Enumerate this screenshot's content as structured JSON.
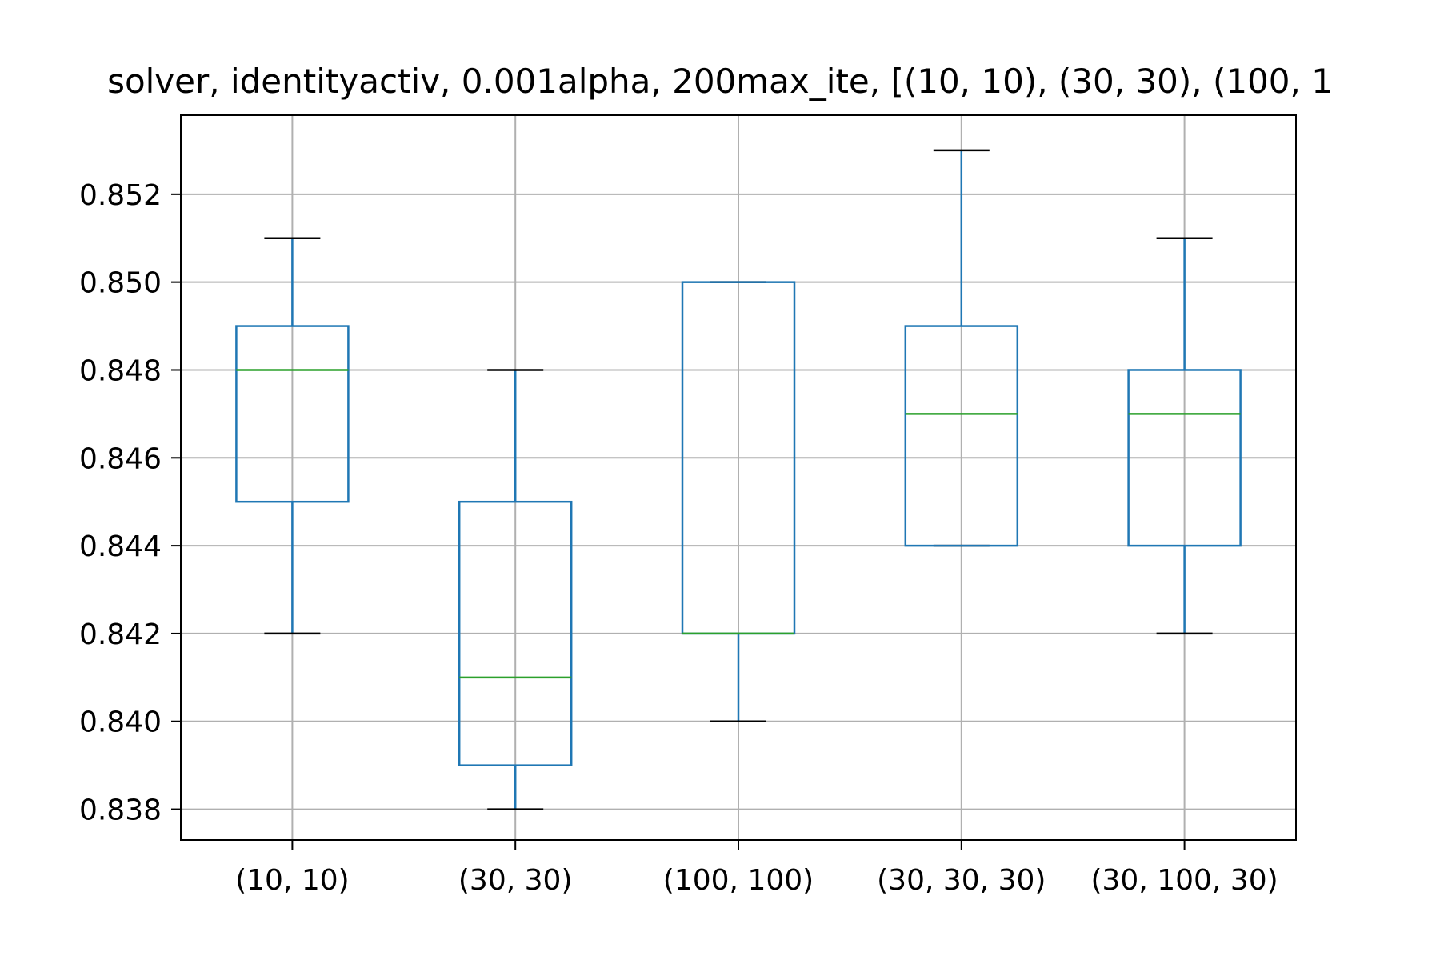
{
  "chart_data": {
    "type": "box",
    "title": "solver, identityactiv, 0.001alpha, 200max_ite, [(10, 10), (30, 30), (100, 1",
    "xlabel": "",
    "ylabel": "",
    "ylim": [
      0.8373,
      0.8538
    ],
    "yticks": [
      "0.838",
      "0.840",
      "0.842",
      "0.844",
      "0.846",
      "0.848",
      "0.850",
      "0.852"
    ],
    "grid": true,
    "categories": [
      "(10, 10)",
      "(30, 30)",
      "(100, 100)",
      "(30, 30, 30)",
      "(30, 100, 30)"
    ],
    "boxes": [
      {
        "whisker_low": 0.842,
        "q1": 0.845,
        "median": 0.848,
        "q3": 0.849,
        "whisker_high": 0.851
      },
      {
        "whisker_low": 0.838,
        "q1": 0.839,
        "median": 0.841,
        "q3": 0.845,
        "whisker_high": 0.848
      },
      {
        "whisker_low": 0.84,
        "q1": 0.842,
        "median": 0.842,
        "q3": 0.85,
        "whisker_high": 0.85
      },
      {
        "whisker_low": 0.844,
        "q1": 0.844,
        "median": 0.847,
        "q3": 0.849,
        "whisker_high": 0.853
      },
      {
        "whisker_low": 0.842,
        "q1": 0.844,
        "median": 0.847,
        "q3": 0.848,
        "whisker_high": 0.851
      }
    ],
    "colors": {
      "box": "#1f77b4",
      "median": "#2ca02c",
      "cap": "#000000",
      "grid": "#b0b0b0",
      "axes": "#000000"
    }
  }
}
